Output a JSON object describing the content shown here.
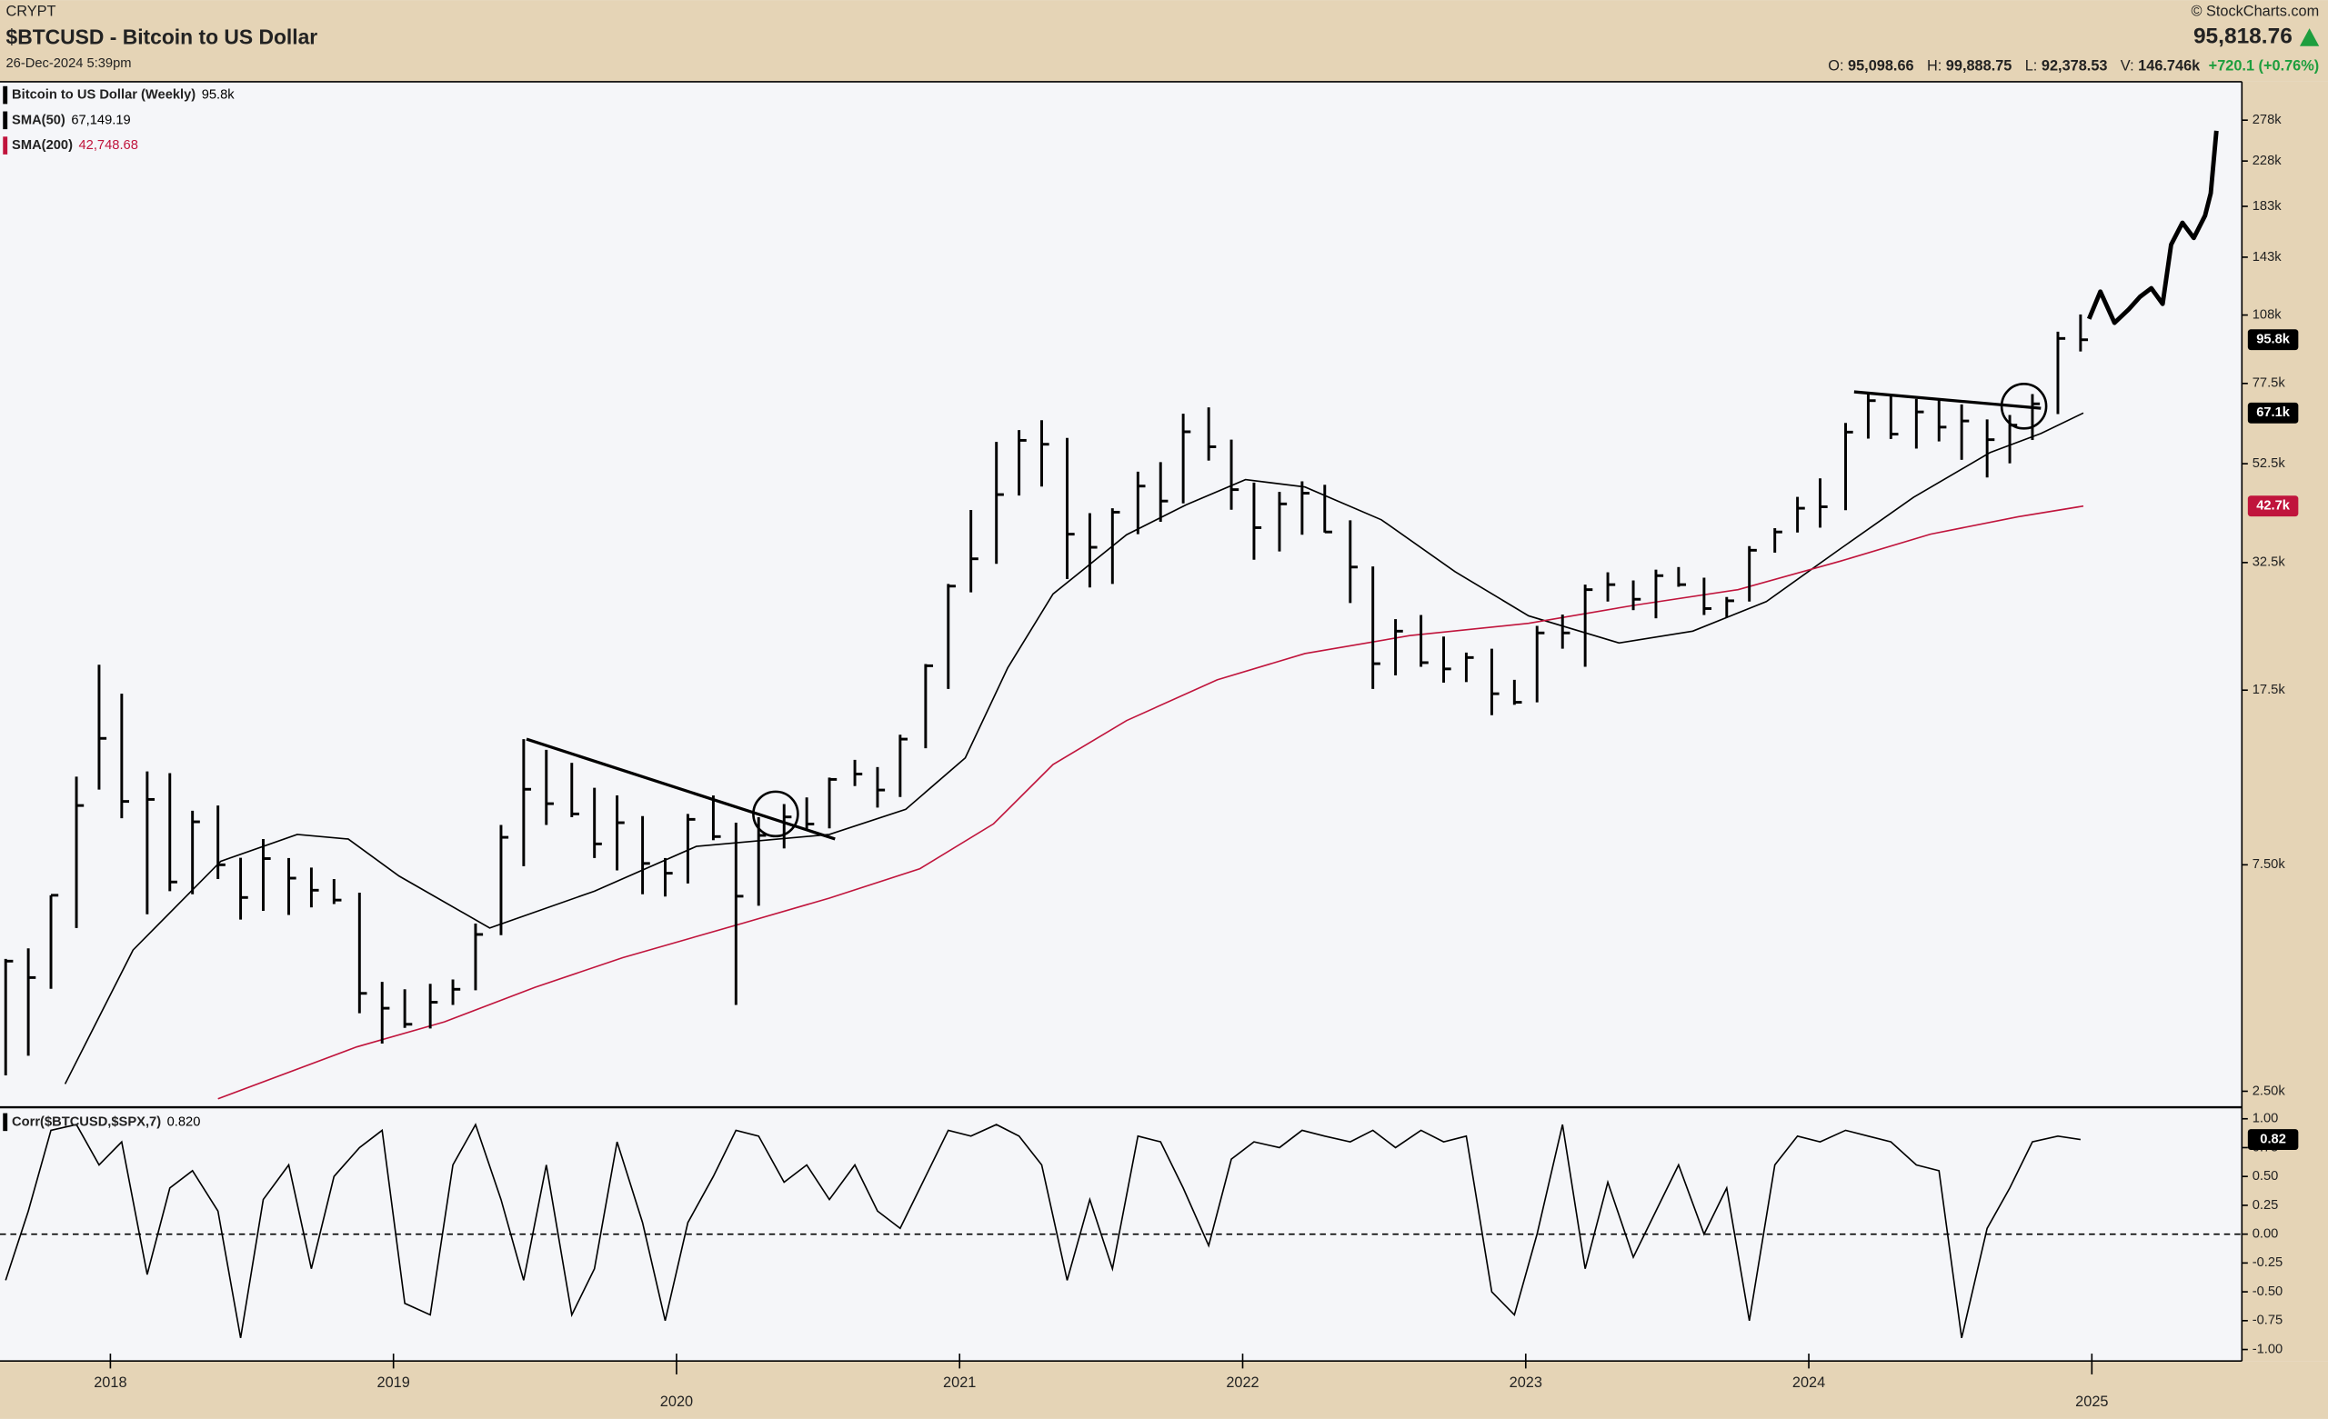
{
  "header": {
    "exchange": "CRYPT",
    "title": "$BTCUSD - Bitcoin to US Dollar",
    "timestamp": "26-Dec-2024 5:39pm",
    "source": "© StockCharts.com",
    "last_price": "95,818.76",
    "quote": [
      {
        "label": "O:",
        "value": "95,098.66"
      },
      {
        "label": "H:",
        "value": "99,888.75"
      },
      {
        "label": "L:",
        "value": "92,378.53"
      },
      {
        "label": "V:",
        "value": "146.746k"
      }
    ],
    "change": "+720.1 (+0.76%)"
  },
  "chart_data": [
    {
      "type": "ohlc",
      "log_scale": true,
      "grid": false,
      "ylim": [
        2330,
        335000
      ],
      "yticks": [
        {
          "value": 2500,
          "label": "2.50k"
        },
        {
          "value": 7500,
          "label": "7.50k"
        },
        {
          "value": 17500,
          "label": "17.5k"
        },
        {
          "value": 32500,
          "label": "32.5k"
        },
        {
          "value": 52500,
          "label": "52.5k"
        },
        {
          "value": 77500,
          "label": "77.5k"
        },
        {
          "value": 108000,
          "label": "108k"
        },
        {
          "value": 143000,
          "label": "143k"
        },
        {
          "value": 183000,
          "label": "183k"
        },
        {
          "value": 228000,
          "label": "228k"
        },
        {
          "value": 278000,
          "label": "278k"
        }
      ],
      "xlim": [
        2017.61,
        2025.53
      ],
      "x": [
        2017.63,
        2017.71,
        2017.79,
        2017.88,
        2017.96,
        2018.04,
        2018.13,
        2018.21,
        2018.29,
        2018.38,
        2018.46,
        2018.54,
        2018.63,
        2018.71,
        2018.79,
        2018.88,
        2018.96,
        2019.04,
        2019.13,
        2019.21,
        2019.29,
        2019.38,
        2019.46,
        2019.54,
        2019.63,
        2019.71,
        2019.79,
        2019.88,
        2019.96,
        2020.04,
        2020.13,
        2020.21,
        2020.29,
        2020.38,
        2020.46,
        2020.54,
        2020.63,
        2020.71,
        2020.79,
        2020.88,
        2020.96,
        2021.04,
        2021.13,
        2021.21,
        2021.29,
        2021.38,
        2021.46,
        2021.54,
        2021.63,
        2021.71,
        2021.79,
        2021.88,
        2021.96,
        2022.04,
        2022.13,
        2022.21,
        2022.29,
        2022.38,
        2022.46,
        2022.54,
        2022.63,
        2022.71,
        2022.79,
        2022.88,
        2022.96,
        2023.04,
        2023.13,
        2023.21,
        2023.29,
        2023.38,
        2023.46,
        2023.54,
        2023.63,
        2023.71,
        2023.79,
        2023.88,
        2023.96,
        2024.04,
        2024.13,
        2024.21,
        2024.29,
        2024.38,
        2024.46,
        2024.54,
        2024.63,
        2024.71,
        2024.79,
        2024.88,
        2024.96
      ],
      "series": [
        {
          "name": "Bitcoin to US Dollar (Weekly)",
          "legend_value": "95.8k",
          "color": "#000000",
          "high": [
            4750,
            5000,
            6470,
            11500,
            19800,
            17200,
            11800,
            11700,
            9750,
            10000,
            7760,
            8500,
            7750,
            7400,
            7000,
            6550,
            4250,
            4100,
            4210,
            4300,
            5640,
            9100,
            13800,
            13100,
            12300,
            10900,
            10500,
            9500,
            7750,
            9600,
            10500,
            9200,
            9450,
            10070,
            10400,
            11450,
            12480,
            12050,
            14100,
            19860,
            29300,
            41950,
            58350,
            61800,
            64850,
            59500,
            41300,
            42300,
            50500,
            52900,
            66900,
            69000,
            59000,
            47900,
            45800,
            48200,
            47400,
            39900,
            31900,
            24700,
            25200,
            22700,
            21000,
            21400,
            18400,
            23900,
            25250,
            29200,
            31000,
            29800,
            31400,
            31800,
            30200,
            27500,
            35200,
            38400,
            44700,
            48900,
            64000,
            73800,
            72800,
            71900,
            72000,
            70000,
            65100,
            66500,
            73600,
            99600,
            108300
          ],
          "low": [
            2700,
            2970,
            4110,
            5520,
            10800,
            9400,
            5900,
            6600,
            6500,
            7000,
            5750,
            6000,
            5880,
            6100,
            6200,
            3650,
            3150,
            3400,
            3390,
            3800,
            4080,
            5330,
            7450,
            9100,
            9450,
            7750,
            7300,
            6500,
            6430,
            6850,
            8450,
            3800,
            6150,
            8120,
            8900,
            8950,
            10990,
            9900,
            10420,
            13200,
            17600,
            28130,
            32300,
            45000,
            47000,
            30000,
            28800,
            29300,
            37300,
            39600,
            43300,
            53300,
            42000,
            32950,
            34300,
            37200,
            37600,
            26700,
            17600,
            18800,
            19600,
            18150,
            18200,
            15500,
            16300,
            16500,
            21400,
            19600,
            26900,
            25800,
            24800,
            28900,
            25200,
            24900,
            26900,
            34100,
            37600,
            38500,
            41900,
            59300,
            59200,
            56500,
            58500,
            53500,
            49100,
            52600,
            58900,
            66800,
            90500
          ],
          "close": [
            4700,
            4340,
            6470,
            10000,
            13850,
            10200,
            10300,
            6900,
            9240,
            7500,
            6400,
            7730,
            7030,
            6630,
            6320,
            4020,
            3740,
            3460,
            3850,
            4100,
            5350,
            8570,
            10820,
            10090,
            9600,
            8300,
            9200,
            7550,
            7200,
            9350,
            8600,
            6440,
            8650,
            9460,
            9140,
            11350,
            11650,
            10780,
            13800,
            19700,
            28990,
            33100,
            45200,
            58800,
            57700,
            37300,
            35000,
            41500,
            47100,
            43800,
            61300,
            57000,
            46300,
            38500,
            43200,
            45500,
            37700,
            31800,
            19900,
            23300,
            20000,
            19400,
            20500,
            17200,
            16500,
            23100,
            23100,
            28500,
            29200,
            27200,
            30500,
            29200,
            26000,
            27000,
            34500,
            37700,
            42300,
            42600,
            61200,
            71300,
            60600,
            67500,
            62700,
            64600,
            59000,
            63300,
            70200,
            96400,
            95800
          ],
          "tag": {
            "value": 95818.76,
            "label": "95.8k"
          }
        }
      ],
      "overlays": [
        {
          "name": "SMA(50)",
          "legend_value": "67,149.19",
          "color": "#000000",
          "x": [
            2017.84,
            2018.08,
            2018.39,
            2018.66,
            2018.84,
            2019.02,
            2019.34,
            2019.71,
            2020.07,
            2020.54,
            2020.81,
            2021.02,
            2021.17,
            2021.33,
            2021.59,
            2021.8,
            2022.01,
            2022.22,
            2022.49,
            2022.75,
            2023.01,
            2023.33,
            2023.59,
            2023.85,
            2024.11,
            2024.37,
            2024.64,
            2024.82,
            2024.97
          ],
          "values": [
            2590,
            4960,
            7630,
            8690,
            8500,
            7100,
            5520,
            6600,
            8200,
            8690,
            9820,
            12600,
            19500,
            27900,
            37200,
            43000,
            48600,
            46900,
            40000,
            31100,
            25100,
            22000,
            23300,
            26900,
            34700,
            44600,
            55400,
            60800,
            67149.19
          ],
          "tag": {
            "value": 67149.19,
            "label": "67.1k"
          }
        },
        {
          "name": "SMA(200)",
          "legend_value": "42,748.68",
          "color": "#c0143c",
          "x": [
            2018.38,
            2018.87,
            2019.18,
            2019.5,
            2019.81,
            2020.23,
            2020.54,
            2020.86,
            2021.12,
            2021.33,
            2021.59,
            2021.91,
            2022.22,
            2022.59,
            2023.01,
            2023.38,
            2023.75,
            2024.11,
            2024.43,
            2024.74,
            2024.97
          ],
          "values": [
            2410,
            3100,
            3500,
            4140,
            4780,
            5640,
            6380,
            7360,
            9150,
            12200,
            15100,
            18400,
            20900,
            22800,
            24200,
            26400,
            28500,
            32700,
            37300,
            40600,
            42748.68
          ],
          "tag": {
            "value": 42748.68,
            "label": "42.7k"
          }
        }
      ],
      "projection": {
        "color": "#000000",
        "x": [
          2024.99,
          2025.03,
          2025.08,
          2025.13,
          2025.17,
          2025.21,
          2025.25,
          2025.28,
          2025.32,
          2025.36,
          2025.4,
          2025.42,
          2025.44
        ],
        "values": [
          106000,
          121000,
          104000,
          111000,
          118000,
          123000,
          114000,
          152000,
          169000,
          157000,
          175000,
          195000,
          264000
        ]
      },
      "trendlines": [
        {
          "x": [
            2019.47,
            2020.56
          ],
          "values": [
            13800,
            8500
          ]
        },
        {
          "x": [
            2024.16,
            2024.82
          ],
          "values": [
            74400,
            68700
          ]
        }
      ],
      "circles": [
        {
          "x": 2020.35,
          "value": 9600
        },
        {
          "x": 2024.76,
          "value": 69400
        }
      ]
    },
    {
      "type": "line",
      "name": "Corr($BTCUSD,$SPX,7)",
      "legend_value": "0.820",
      "color": "#000000",
      "ylim": [
        -1.1,
        1.1
      ],
      "yticks": [
        {
          "value": 1,
          "label": "1.00"
        },
        {
          "value": 0.75,
          "label": "0.75"
        },
        {
          "value": 0.5,
          "label": "0.50"
        },
        {
          "value": 0.25,
          "label": "0.25"
        },
        {
          "value": 0,
          "label": "0.00"
        },
        {
          "value": -0.25,
          "label": "-0.25"
        },
        {
          "value": -0.5,
          "label": "-0.50"
        },
        {
          "value": -0.75,
          "label": "-0.75"
        },
        {
          "value": -1,
          "label": "-1.00"
        }
      ],
      "reference_line": 0,
      "xticks": [
        2018,
        2019,
        2020,
        2021,
        2022,
        2023,
        2024,
        2025
      ],
      "values": [
        -0.4,
        0.2,
        0.9,
        0.95,
        0.6,
        0.8,
        -0.35,
        0.4,
        0.55,
        0.2,
        -0.9,
        0.3,
        0.6,
        -0.3,
        0.5,
        0.75,
        0.9,
        -0.6,
        -0.7,
        0.6,
        0.95,
        0.3,
        -0.4,
        0.6,
        -0.7,
        -0.3,
        0.8,
        0.1,
        -0.75,
        0.1,
        0.5,
        0.9,
        0.85,
        0.45,
        0.6,
        0.3,
        0.6,
        0.2,
        0.05,
        0.5,
        0.9,
        0.85,
        0.95,
        0.85,
        0.6,
        -0.4,
        0.3,
        -0.3,
        0.85,
        0.8,
        0.4,
        -0.1,
        0.65,
        0.8,
        0.75,
        0.9,
        0.85,
        0.8,
        0.9,
        0.75,
        0.9,
        0.8,
        0.85,
        -0.5,
        -0.7,
        0.0,
        0.95,
        -0.3,
        0.45,
        -0.2,
        0.2,
        0.6,
        0.0,
        0.4,
        -0.75,
        0.6,
        0.85,
        0.8,
        0.9,
        0.85,
        0.8,
        0.6,
        0.55,
        -0.9,
        0.05,
        0.4,
        0.8,
        0.85,
        0.82
      ],
      "tag": {
        "value": 0.82,
        "label": "0.82"
      }
    }
  ]
}
